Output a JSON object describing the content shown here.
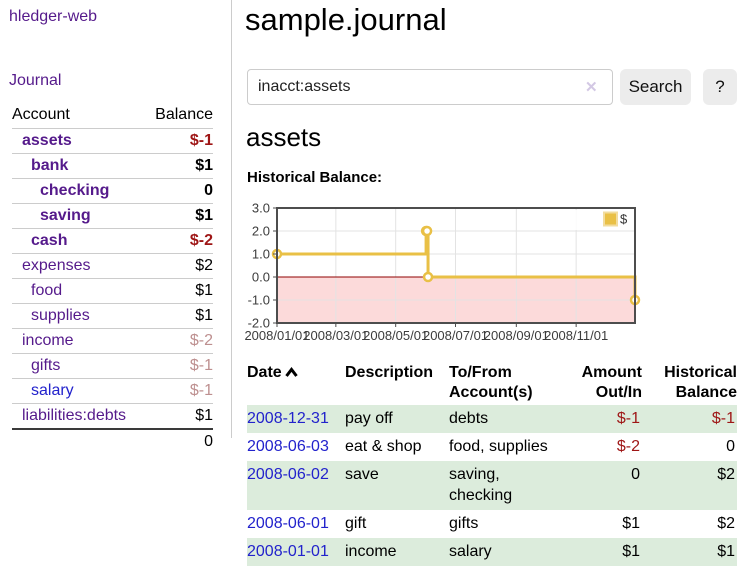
{
  "sidebar": {
    "app_title": "hledger-web",
    "nav": {
      "journal_label": "Journal"
    },
    "table": {
      "headers": [
        "Account",
        "Balance"
      ],
      "rows": [
        {
          "account": "assets",
          "balance": "$-1",
          "indent": 1,
          "bold": true,
          "balance_class": "neg",
          "link_class": ""
        },
        {
          "account": "bank",
          "balance": "$1",
          "indent": 2,
          "bold": true,
          "balance_class": "",
          "link_class": ""
        },
        {
          "account": "checking",
          "balance": "0",
          "indent": 3,
          "bold": true,
          "balance_class": "",
          "link_class": ""
        },
        {
          "account": "saving",
          "balance": "$1",
          "indent": 3,
          "bold": true,
          "balance_class": "",
          "link_class": ""
        },
        {
          "account": "cash",
          "balance": "$-2",
          "indent": 2,
          "bold": true,
          "balance_class": "neg",
          "link_class": ""
        },
        {
          "account": "expenses",
          "balance": "$2",
          "indent": 1,
          "bold": false,
          "balance_class": "",
          "link_class": ""
        },
        {
          "account": "food",
          "balance": "$1",
          "indent": 2,
          "bold": false,
          "balance_class": "",
          "link_class": ""
        },
        {
          "account": "supplies",
          "balance": "$1",
          "indent": 2,
          "bold": false,
          "balance_class": "",
          "link_class": ""
        },
        {
          "account": "income",
          "balance": "$-2",
          "indent": 1,
          "bold": false,
          "balance_class": "weakneg",
          "link_class": ""
        },
        {
          "account": "gifts",
          "balance": "$-1",
          "indent": 2,
          "bold": false,
          "balance_class": "weakneg",
          "link_class": ""
        },
        {
          "account": "salary",
          "balance": "$-1",
          "indent": 2,
          "bold": false,
          "balance_class": "weakneg",
          "link_class": "blue"
        },
        {
          "account": "liabilities:debts",
          "balance": "$1",
          "indent": 1,
          "bold": false,
          "balance_class": "",
          "link_class": ""
        }
      ],
      "total": "0"
    }
  },
  "main": {
    "title": "sample.journal",
    "search": {
      "value": "inacct:assets",
      "clear_icon": "✕",
      "search_button": "Search",
      "help_button": "?"
    },
    "account_heading": "assets",
    "chart_label": "Historical Balance:"
  },
  "chart_data": {
    "type": "line",
    "style": "step",
    "title": "Historical Balance",
    "legend": "$",
    "legend_position": "top-right",
    "grid": true,
    "ylim": [
      -2,
      3
    ],
    "yticks": [
      3,
      2,
      1,
      0,
      -1,
      -2
    ],
    "ytick_labels": [
      "3.0",
      "2.0",
      "1.0",
      "0.0",
      "-1.0",
      "-2.0"
    ],
    "xticks": [
      "2008/01/01",
      "2008/03/01",
      "2008/05/01",
      "2008/07/01",
      "2008/09/01",
      "2008/11/01"
    ],
    "x_range_days": 365,
    "series": [
      {
        "name": "$",
        "points": [
          {
            "date": "2008-01-01",
            "value": 1
          },
          {
            "date": "2008-06-01",
            "value": 2
          },
          {
            "date": "2008-06-02",
            "value": 2
          },
          {
            "date": "2008-06-03",
            "value": 0
          },
          {
            "date": "2008-12-31",
            "value": -1
          }
        ]
      }
    ],
    "colors": {
      "line": "#e9c046",
      "marker_fill": "#ffffff",
      "negative_region": "#fcdada",
      "zero_line": "#8f0000",
      "grid": "#e3e3e3",
      "border": "#4d4d4d",
      "axis_text": "#3c3c3c",
      "legend_square_border": "#f2dc9e"
    }
  },
  "transactions": {
    "headers": {
      "date": "Date",
      "description": "Description",
      "accounts_line1": "To/From",
      "accounts_line2": "Account(s)",
      "amount_line1": "Amount",
      "amount_line2": "Out/In",
      "balance_line1": "Historical",
      "balance_line2": "Balance"
    },
    "rows": [
      {
        "date": "2008-12-31",
        "description": "pay off",
        "accounts": "debts",
        "amount": "$-1",
        "amount_class": "neg",
        "balance": "$-1",
        "balance_class": "neg"
      },
      {
        "date": "2008-06-03",
        "description": "eat & shop",
        "accounts": "food, supplies",
        "amount": "$-2",
        "amount_class": "neg",
        "balance": "0",
        "balance_class": ""
      },
      {
        "date": "2008-06-02",
        "description": "save",
        "accounts": "saving, checking",
        "amount": "0",
        "amount_class": "",
        "balance": "$2",
        "balance_class": ""
      },
      {
        "date": "2008-06-01",
        "description": "gift",
        "accounts": "gifts",
        "amount": "$1",
        "amount_class": "",
        "balance": "$2",
        "balance_class": ""
      },
      {
        "date": "2008-01-01",
        "description": "income",
        "accounts": "salary",
        "amount": "$1",
        "amount_class": "",
        "balance": "$1",
        "balance_class": ""
      }
    ]
  }
}
